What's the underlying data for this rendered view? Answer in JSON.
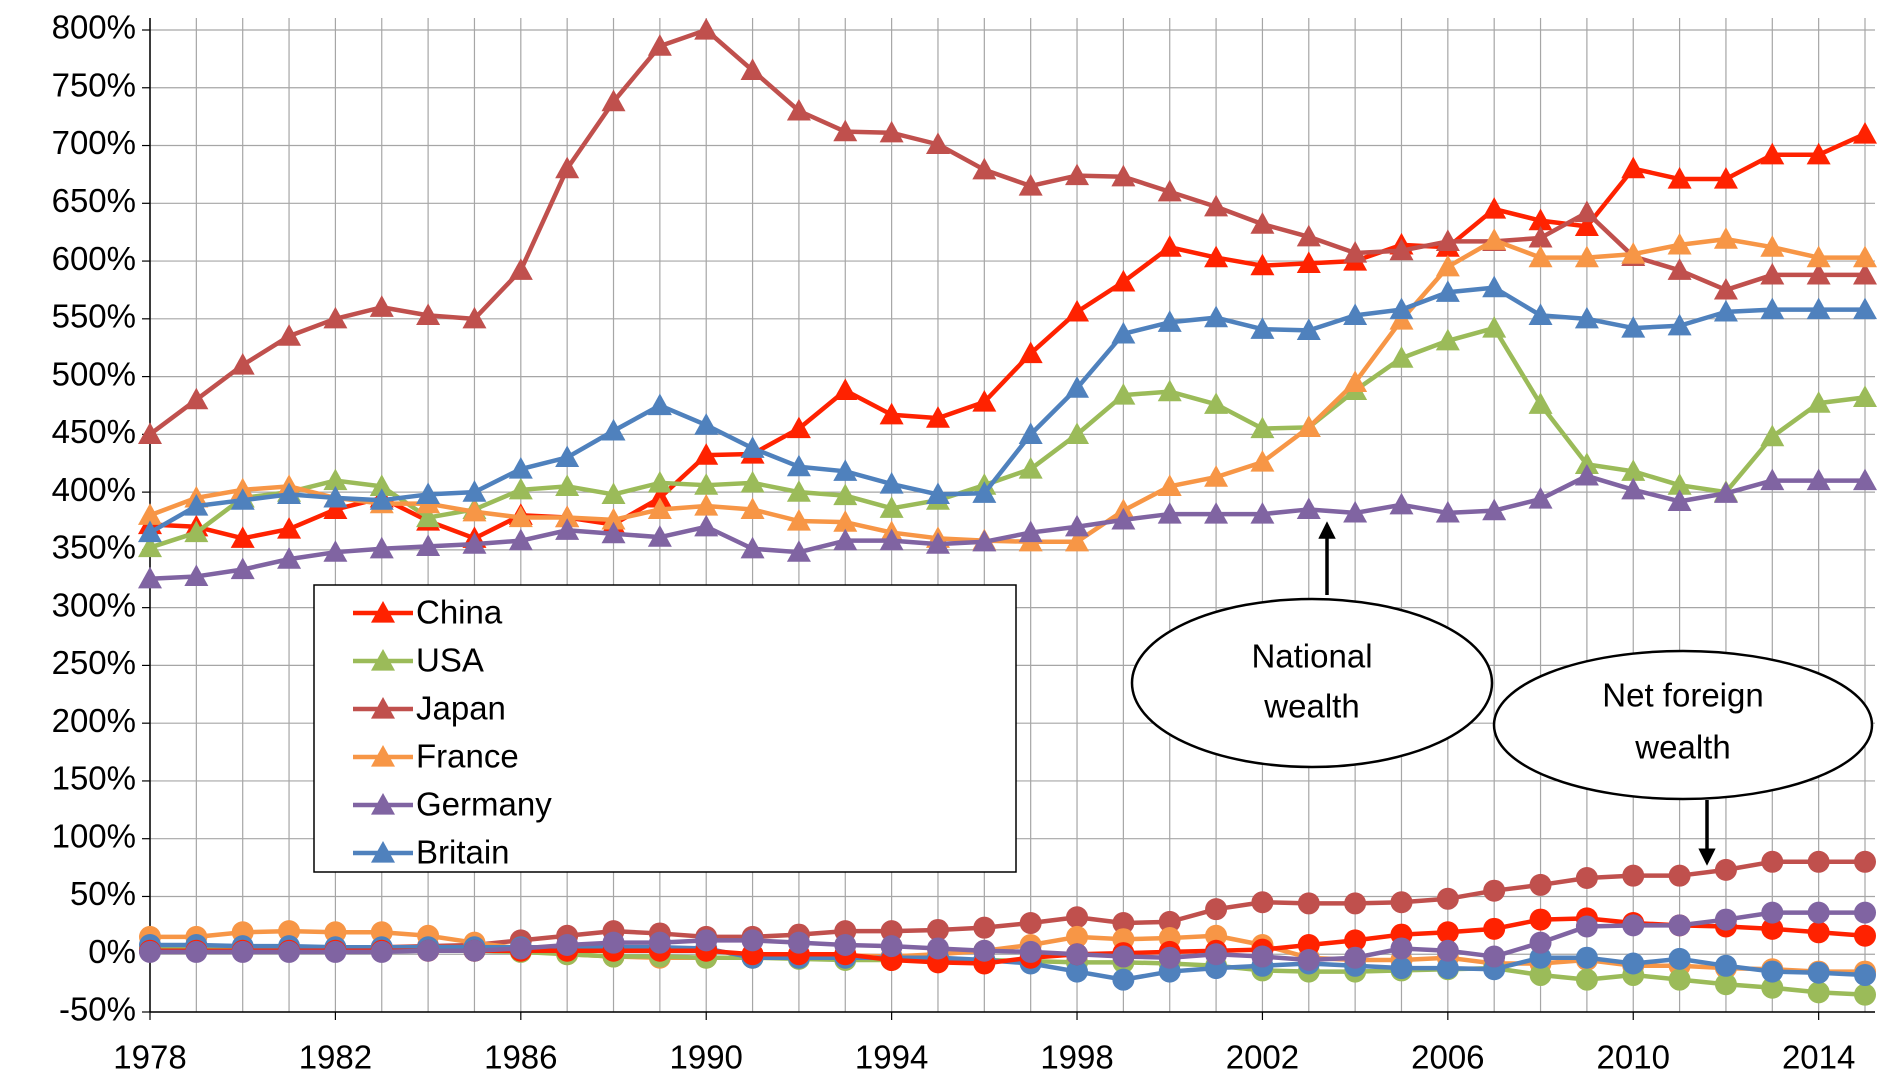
{
  "chart_data": {
    "type": "line",
    "x": [
      1978,
      1979,
      1980,
      1981,
      1982,
      1983,
      1984,
      1985,
      1986,
      1987,
      1988,
      1989,
      1990,
      1991,
      1992,
      1993,
      1994,
      1995,
      1996,
      1997,
      1998,
      1999,
      2000,
      2001,
      2002,
      2003,
      2004,
      2005,
      2006,
      2007,
      2008,
      2009,
      2010,
      2011,
      2012,
      2013,
      2014,
      2015
    ],
    "xlim": [
      1978,
      2015
    ],
    "xticks": [
      1978,
      1982,
      1986,
      1990,
      1994,
      1998,
      2002,
      2006,
      2010,
      2014
    ],
    "ylim": [
      -50,
      800
    ],
    "yticks": [
      {
        "value": -50,
        "label": "-50%"
      },
      {
        "value": 0,
        "label": "0%"
      },
      {
        "value": 50,
        "label": "50%"
      },
      {
        "value": 100,
        "label": "100%"
      },
      {
        "value": 150,
        "label": "150%"
      },
      {
        "value": 200,
        "label": "200%"
      },
      {
        "value": 250,
        "label": "250%"
      },
      {
        "value": 300,
        "label": "300%"
      },
      {
        "value": 350,
        "label": "350%"
      },
      {
        "value": 400,
        "label": "400%"
      },
      {
        "value": 450,
        "label": "450%"
      },
      {
        "value": 500,
        "label": "500%"
      },
      {
        "value": 550,
        "label": "550%"
      },
      {
        "value": 600,
        "label": "600%"
      },
      {
        "value": 650,
        "label": "650%"
      },
      {
        "value": 700,
        "label": "700%"
      },
      {
        "value": 750,
        "label": "750%"
      },
      {
        "value": 800,
        "label": "800%"
      }
    ],
    "grid": true,
    "series": [
      {
        "marker": "circle",
        "color": "#c0504d",
        "values": [
          3,
          3,
          4,
          5,
          5,
          6,
          7,
          8,
          12,
          16,
          20,
          18,
          15,
          15,
          17,
          20,
          20,
          21,
          23,
          27,
          32,
          27,
          28,
          39,
          45,
          44,
          44,
          45,
          48,
          55,
          60,
          66,
          68,
          68,
          73,
          80,
          80,
          80
        ]
      },
      {
        "marker": "circle",
        "color": "#f79646",
        "values": [
          15,
          15,
          19,
          20,
          19,
          19,
          16,
          10,
          5,
          0,
          -2,
          -3,
          -3,
          -3,
          -2,
          -1,
          -2,
          0,
          3,
          8,
          15,
          13,
          14,
          16,
          8,
          -3,
          -5,
          -5,
          -3,
          -8,
          -8,
          -5,
          -10,
          -10,
          -12,
          -13,
          -15,
          -15
        ]
      },
      {
        "marker": "circle",
        "color": "#9bbb59",
        "values": [
          5,
          5,
          5,
          5,
          5,
          4,
          4,
          3,
          2,
          0,
          -2,
          -2,
          -3,
          -3,
          -4,
          -5,
          -5,
          -5,
          -5,
          -6,
          -7,
          -7,
          -8,
          -10,
          -14,
          -15,
          -15,
          -14,
          -13,
          -12,
          -18,
          -22,
          -18,
          -22,
          -26,
          -29,
          -33,
          -35
        ]
      },
      {
        "marker": "circle",
        "color": "#4f81bd",
        "values": [
          8,
          8,
          7,
          7,
          6,
          6,
          6,
          6,
          6,
          6,
          6,
          6,
          5,
          -3,
          -3,
          -3,
          -3,
          -3,
          -5,
          -8,
          -15,
          -22,
          -15,
          -12,
          -10,
          -8,
          -10,
          -12,
          -12,
          -13,
          -3,
          -3,
          -8,
          -4,
          -10,
          -15,
          -16,
          -18
        ]
      },
      {
        "marker": "circle",
        "color": "#ff2200",
        "values": [
          3,
          3,
          3,
          3,
          3,
          3,
          3,
          3,
          3,
          3,
          3,
          3,
          3,
          0,
          0,
          0,
          -5,
          -7,
          -8,
          -3,
          0,
          1,
          2,
          3,
          4,
          8,
          12,
          17,
          19,
          22,
          30,
          31,
          27,
          25,
          24,
          22,
          19,
          16
        ]
      },
      {
        "marker": "circle",
        "color": "#8064a2",
        "values": [
          2,
          2,
          2,
          2,
          2,
          2,
          3,
          3,
          5,
          8,
          10,
          10,
          12,
          12,
          10,
          8,
          7,
          5,
          3,
          2,
          0,
          -2,
          -3,
          0,
          -2,
          -5,
          -3,
          5,
          3,
          -2,
          10,
          24,
          25,
          25,
          30,
          36,
          36,
          36
        ]
      },
      {
        "name": "China",
        "marker": "triangle",
        "color": "#ff2200",
        "values": [
          372,
          370,
          360,
          368,
          385,
          395,
          375,
          360,
          380,
          378,
          372,
          395,
          432,
          433,
          455,
          488,
          467,
          464,
          478,
          520,
          556,
          582,
          612,
          603,
          596,
          598,
          600,
          614,
          612,
          645,
          635,
          630,
          680,
          671,
          671,
          692,
          692,
          710
        ]
      },
      {
        "name": "USA",
        "marker": "triangle",
        "color": "#9bbb59",
        "values": [
          352,
          365,
          395,
          400,
          410,
          405,
          378,
          385,
          402,
          405,
          398,
          408,
          406,
          408,
          400,
          397,
          386,
          393,
          406,
          420,
          450,
          484,
          487,
          476,
          455,
          456,
          488,
          516,
          531,
          542,
          476,
          424,
          418,
          406,
          400,
          448,
          477,
          482
        ]
      },
      {
        "name": "Japan",
        "marker": "triangle",
        "color": "#c0504d",
        "values": [
          450,
          480,
          510,
          535,
          550,
          560,
          553,
          550,
          592,
          680,
          738,
          786,
          800,
          765,
          730,
          712,
          711,
          701,
          679,
          665,
          674,
          673,
          660,
          647,
          632,
          621,
          607,
          609,
          617,
          617,
          620,
          642,
          604,
          592,
          575,
          588,
          588,
          588
        ]
      },
      {
        "name": "France",
        "marker": "triangle",
        "color": "#f79646",
        "values": [
          380,
          395,
          402,
          405,
          395,
          390,
          390,
          383,
          378,
          378,
          376,
          385,
          388,
          385,
          375,
          374,
          365,
          360,
          358,
          357,
          357,
          384,
          405,
          413,
          426,
          456,
          495,
          549,
          595,
          618,
          603,
          603,
          606,
          614,
          619,
          612,
          603,
          603
        ]
      },
      {
        "name": "Germany",
        "marker": "triangle",
        "color": "#8064a2",
        "values": [
          325,
          327,
          333,
          342,
          348,
          351,
          353,
          355,
          358,
          367,
          364,
          361,
          370,
          351,
          348,
          358,
          358,
          355,
          357,
          365,
          370,
          376,
          381,
          381,
          381,
          385,
          382,
          389,
          382,
          384,
          394,
          414,
          402,
          392,
          399,
          410,
          410,
          410
        ]
      },
      {
        "name": "Britain",
        "marker": "triangle",
        "color": "#4f81bd",
        "values": [
          365,
          388,
          393,
          398,
          395,
          393,
          398,
          400,
          420,
          430,
          453,
          475,
          458,
          438,
          422,
          418,
          407,
          398,
          399,
          450,
          490,
          537,
          547,
          551,
          541,
          540,
          553,
          558,
          573,
          577,
          553,
          550,
          542,
          544,
          556,
          558,
          558,
          558
        ]
      }
    ],
    "annotations": [
      {
        "lines": [
          "National",
          "wealth"
        ]
      },
      {
        "lines": [
          "Net foreign",
          "wealth"
        ]
      }
    ]
  }
}
